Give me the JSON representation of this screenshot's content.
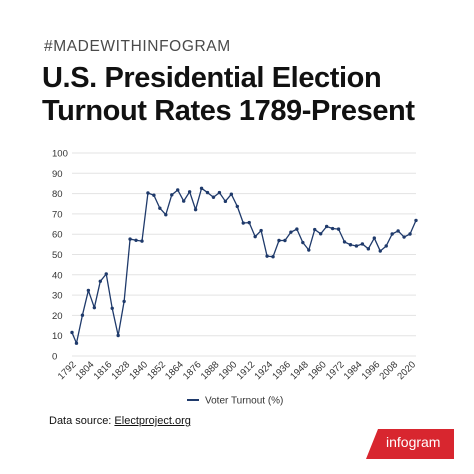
{
  "header": {
    "hashtag": "#MADEWITHINFOGRAM",
    "title_line1": "U.S. Presidential Election",
    "title_line2": "Turnout Rates 1789-Present"
  },
  "footer": {
    "source_prefix": "Data source: ",
    "source_link": "Electproject.org",
    "brand": "infogram"
  },
  "colors": {
    "line": "#1f3a6b",
    "grid": "#e3e3e3",
    "axis_text": "#333333",
    "brand": "#d8262f"
  },
  "chart_data": {
    "type": "line",
    "title": "",
    "xlabel": "",
    "ylabel": "",
    "ylim": [
      0,
      100
    ],
    "y_ticks": [
      0,
      10,
      20,
      30,
      40,
      50,
      60,
      70,
      80,
      90,
      100
    ],
    "x_tick_labels": [
      "1792",
      "1804",
      "1816",
      "1828",
      "1840",
      "1852",
      "1864",
      "1876",
      "1888",
      "1900",
      "1912",
      "1924",
      "1936",
      "1948",
      "1960",
      "1972",
      "1984",
      "1996",
      "2008",
      "2020"
    ],
    "grid": true,
    "legend_position": "bottom",
    "x": [
      1789,
      1792,
      1796,
      1800,
      1804,
      1808,
      1812,
      1816,
      1820,
      1824,
      1828,
      1832,
      1836,
      1840,
      1844,
      1848,
      1852,
      1856,
      1860,
      1864,
      1868,
      1872,
      1876,
      1880,
      1884,
      1888,
      1892,
      1896,
      1900,
      1904,
      1908,
      1912,
      1916,
      1920,
      1924,
      1928,
      1932,
      1936,
      1940,
      1944,
      1948,
      1952,
      1956,
      1960,
      1964,
      1968,
      1972,
      1976,
      1980,
      1984,
      1988,
      1992,
      1996,
      2000,
      2004,
      2008,
      2012,
      2016,
      2020
    ],
    "series": [
      {
        "name": "Voter Turnout (%)",
        "values": [
          11.6,
          6.3,
          20.1,
          32.3,
          23.8,
          36.8,
          40.4,
          23.5,
          10.1,
          26.9,
          57.6,
          57.0,
          56.6,
          80.3,
          79.2,
          72.8,
          69.6,
          79.4,
          81.8,
          76.3,
          80.9,
          72.1,
          82.6,
          80.5,
          78.2,
          80.5,
          76.2,
          79.7,
          73.7,
          65.5,
          65.7,
          58.8,
          61.8,
          49.2,
          48.9,
          56.9,
          56.9,
          61.0,
          62.5,
          55.9,
          52.2,
          62.3,
          60.2,
          63.8,
          62.8,
          62.5,
          56.2,
          54.8,
          54.2,
          55.2,
          52.8,
          58.1,
          51.7,
          54.2,
          60.1,
          61.6,
          58.6,
          60.1,
          66.8
        ]
      }
    ]
  }
}
